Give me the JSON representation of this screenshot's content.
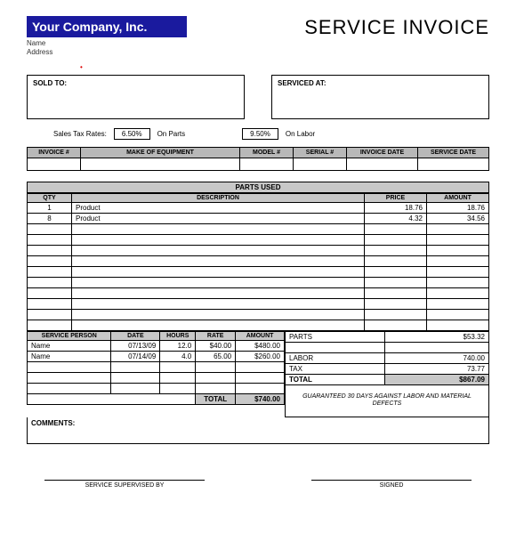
{
  "header": {
    "company_name": "Your Company, Inc.",
    "name_label": "Name",
    "address_label": "Address",
    "doc_title": "SERVICE INVOICE"
  },
  "boxes": {
    "sold_to": "SOLD TO:",
    "serviced_at": "SERVICED AT:"
  },
  "tax": {
    "label": "Sales Tax Rates:",
    "parts_rate": "6.50%",
    "on_parts": "On Parts",
    "labor_rate": "9.50%",
    "on_labor": "On Labor"
  },
  "meta_headers": [
    "INVOICE #",
    "MAKE OF EQUIPMENT",
    "MODEL #",
    "SERIAL #",
    "INVOICE DATE",
    "SERVICE DATE"
  ],
  "parts": {
    "title": "PARTS USED",
    "headers": [
      "QTY",
      "DESCRIPTION",
      "PRICE",
      "AMOUNT"
    ],
    "rows": [
      {
        "qty": "1",
        "desc": "Product",
        "price": "18.76",
        "amount": "18.76"
      },
      {
        "qty": "8",
        "desc": "Product",
        "price": "4.32",
        "amount": "34.56"
      }
    ],
    "empty_rows": 10
  },
  "labor": {
    "headers": [
      "SERVICE PERSON",
      "DATE",
      "HOURS",
      "RATE",
      "AMOUNT"
    ],
    "rows": [
      {
        "person": "Name",
        "date": "07/13/09",
        "hours": "12.0",
        "rate": "$40.00",
        "amount": "$480.00"
      },
      {
        "person": "Name",
        "date": "07/14/09",
        "hours": "4.0",
        "rate": "65.00",
        "amount": "$260.00"
      }
    ],
    "empty_rows": 3,
    "total_label": "TOTAL",
    "total_value": "$740.00"
  },
  "summary": {
    "parts_label": "PARTS",
    "parts_value": "$53.32",
    "labor_label": "LABOR",
    "labor_value": "740.00",
    "tax_label": "TAX",
    "tax_value": "73.77",
    "total_label": "TOTAL",
    "total_value": "$867.09",
    "guarantee": "GUARANTEED 30 DAYS AGAINST LABOR AND MATERIAL DEFECTS"
  },
  "comments_label": "COMMENTS:",
  "sig": {
    "supervised": "SERVICE SUPERVISED BY",
    "signed": "SIGNED"
  },
  "colors": {
    "banner_bg": "#1a1a9e",
    "header_bg": "#c8c8c8",
    "border": "#000000"
  }
}
